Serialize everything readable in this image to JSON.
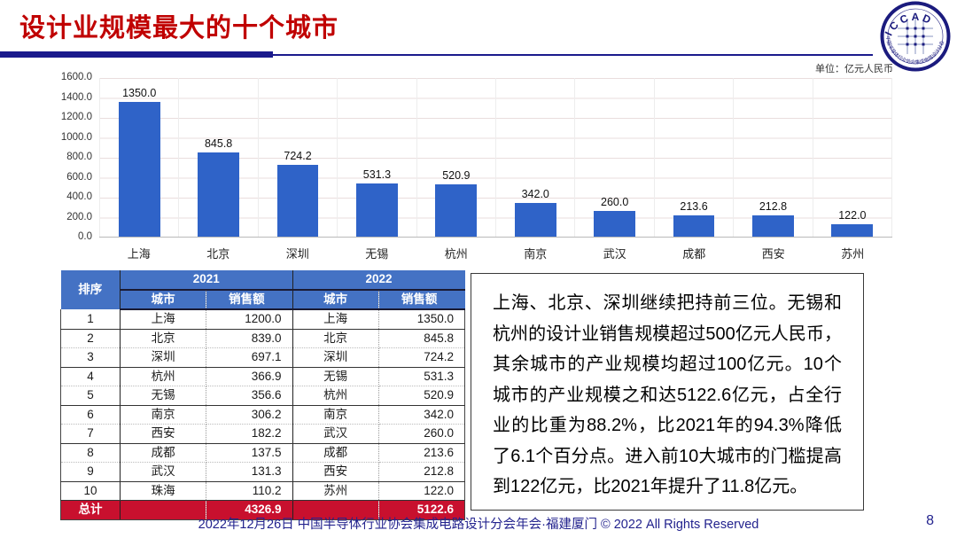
{
  "header": {
    "title": "设计业规模最大的十个城市",
    "logo_text": "I C C A D",
    "logo_ring_text": "中国半导体行业协会集成电路设计分会"
  },
  "chart": {
    "unit_label": "单位：亿元人民币"
  },
  "chart_data": {
    "type": "bar",
    "categories": [
      "上海",
      "北京",
      "深圳",
      "无锡",
      "杭州",
      "南京",
      "武汉",
      "成都",
      "西安",
      "苏州"
    ],
    "values": [
      1350.0,
      845.8,
      724.2,
      531.3,
      520.9,
      342.0,
      260.0,
      213.6,
      212.8,
      122.0
    ],
    "value_labels": [
      "1350.0",
      "845.8",
      "724.2",
      "531.3",
      "520.9",
      "342.0",
      "260.0",
      "213.6",
      "212.8",
      "122.0"
    ],
    "title": "",
    "xlabel": "",
    "ylabel": "",
    "ylim": [
      0,
      1600
    ],
    "ytick_step": 200,
    "ytick_labels": [
      "1600.0",
      "1400.0",
      "1200.0",
      "1000.0",
      "800.0",
      "600.0",
      "400.0",
      "200.0",
      "0.0"
    ],
    "unit": "亿元人民币",
    "grid": true,
    "legend": false,
    "bar_color": "#2F63C8"
  },
  "table": {
    "rank_header": "排序",
    "year_2021": "2021",
    "year_2022": "2022",
    "city_header_2021": "城市",
    "sales_header_2021": "销售额",
    "city_header_2022": "城市",
    "sales_header_2022": "销售额",
    "rows": [
      [
        "1",
        "上海",
        "1200.0",
        "上海",
        "1350.0"
      ],
      [
        "2",
        "北京",
        "839.0",
        "北京",
        "845.8"
      ],
      [
        "3",
        "深圳",
        "697.1",
        "深圳",
        "724.2"
      ],
      [
        "4",
        "杭州",
        "366.9",
        "无锡",
        "531.3"
      ],
      [
        "5",
        "无锡",
        "356.6",
        "杭州",
        "520.9"
      ],
      [
        "6",
        "南京",
        "306.2",
        "南京",
        "342.0"
      ],
      [
        "7",
        "西安",
        "182.2",
        "武汉",
        "260.0"
      ],
      [
        "8",
        "成都",
        "137.5",
        "成都",
        "213.6"
      ],
      [
        "9",
        "武汉",
        "131.3",
        "西安",
        "212.8"
      ],
      [
        "10",
        "珠海",
        "110.2",
        "苏州",
        "122.0"
      ]
    ],
    "total": {
      "label": "总计",
      "sales_2021": "4326.9",
      "sales_2022": "5122.6"
    }
  },
  "commentary": {
    "text": "上海、北京、深圳继续把持前三位。无锡和杭州的设计业销售规模超过500亿元人民币，其余城市的产业规模均超过100亿元。10个城市的产业规模之和达5122.6亿元，占全行业的比重为88.2%，比2021年的94.3%降低了6.1个百分点。进入前10大城市的门槛提高到122亿元，比2021年提升了11.8亿元。"
  },
  "footer": {
    "text": "2022年12月26日 中国半导体行业协会集成电路设计分会年会·福建厦门 © 2022 All Rights Reserved",
    "page_number": "8"
  },
  "colors": {
    "title_red": "#C00000",
    "bar_blue": "#2F63C8",
    "table_header_blue": "#4472C4",
    "total_row_red": "#C8102E",
    "accent_navy": "#1A1A8C",
    "footer_navy": "#23238E"
  }
}
